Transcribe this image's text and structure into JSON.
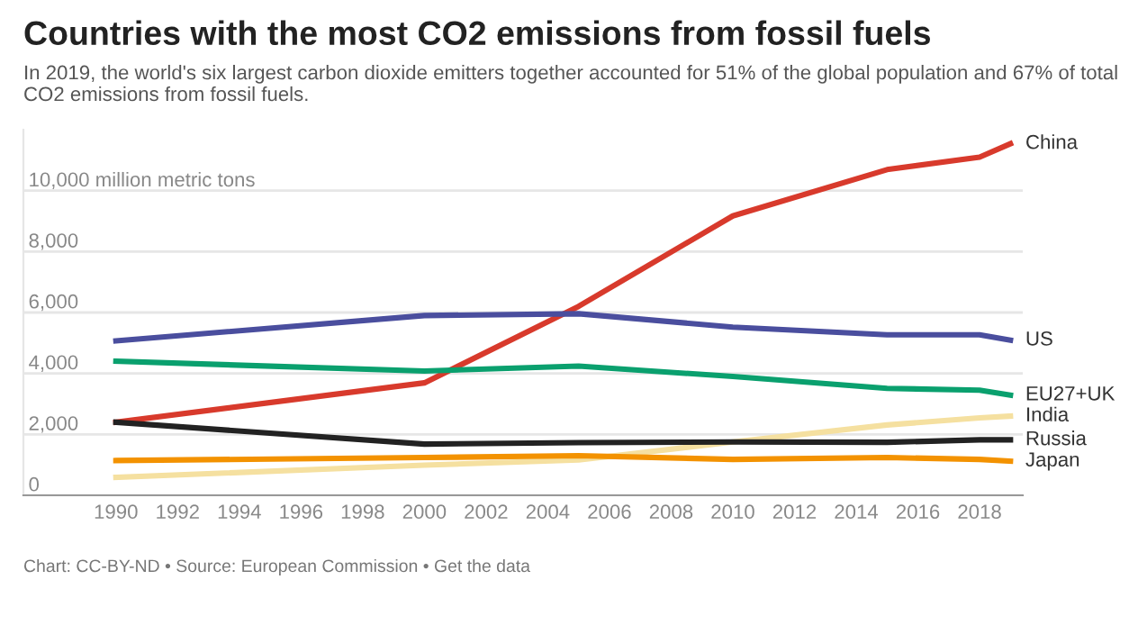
{
  "chart_data": {
    "type": "line",
    "title": "Countries with the most CO2 emissions from fossil fuels",
    "subtitle": "In 2019, the world's six largest carbon dioxide emitters together accounted for 51% of the global population and 67% of total CO2 emissions from fossil fuels.",
    "annotations": [
      "Chart: CC-BY-ND • Source: European Commission • Get the data"
    ],
    "x": [
      1990,
      2000,
      2005,
      2010,
      2015,
      2018,
      2019
    ],
    "series": [
      {
        "name": "China",
        "color": "#d83a2c",
        "values": [
          2400,
          3690,
          6200,
          9170,
          10690,
          11100,
          11540
        ]
      },
      {
        "name": "US",
        "color": "#4a4e9e",
        "values": [
          5070,
          5900,
          5960,
          5520,
          5270,
          5270,
          5090
        ]
      },
      {
        "name": "EU27+UK",
        "color": "#0aa06e",
        "values": [
          4400,
          4080,
          4240,
          3900,
          3510,
          3450,
          3290
        ]
      },
      {
        "name": "India",
        "color": "#f5e0a0",
        "values": [
          590,
          990,
          1160,
          1750,
          2310,
          2540,
          2600
        ]
      },
      {
        "name": "Russia",
        "color": "#222222",
        "values": [
          2400,
          1680,
          1730,
          1750,
          1740,
          1820,
          1820
        ]
      },
      {
        "name": "Japan",
        "color": "#f39200",
        "values": [
          1140,
          1240,
          1300,
          1180,
          1240,
          1180,
          1120
        ]
      }
    ],
    "xlim": [
      1987,
      2019.4
    ],
    "xticks": [
      1990,
      1992,
      1994,
      1996,
      1998,
      2000,
      2002,
      2004,
      2006,
      2008,
      2010,
      2012,
      2014,
      2016,
      2018
    ],
    "ylim": [
      0,
      12000
    ],
    "yticks": [
      {
        "value": 0,
        "label": "0"
      },
      {
        "value": 2000,
        "label": "2,000"
      },
      {
        "value": 4000,
        "label": "4,000"
      },
      {
        "value": 6000,
        "label": "6,000"
      },
      {
        "value": 8000,
        "label": "8,000"
      },
      {
        "value": 10000,
        "label": "10,000 million metric tons"
      }
    ],
    "grid": "y",
    "marker": "none",
    "line_style": "solid"
  }
}
